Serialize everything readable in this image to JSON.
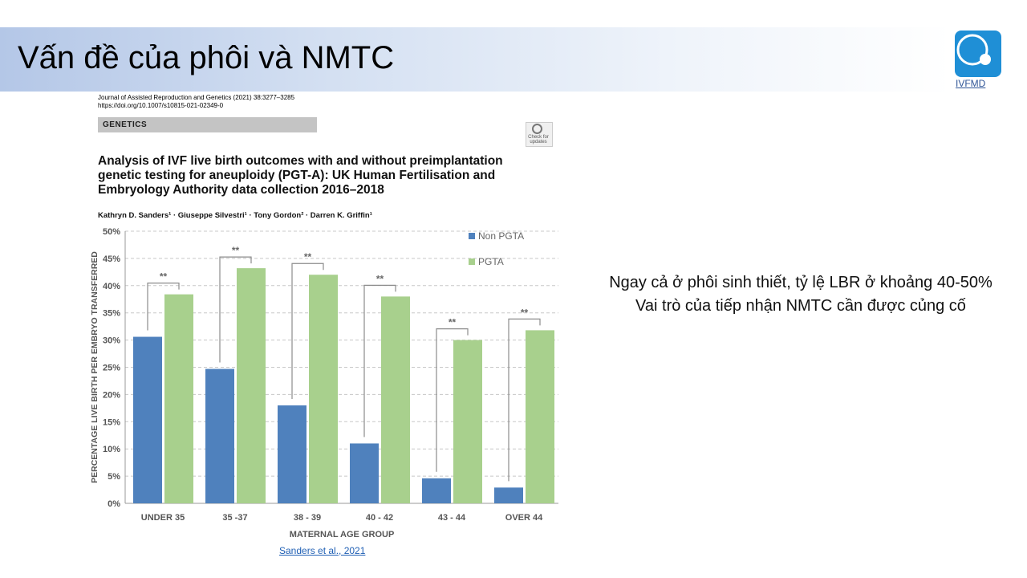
{
  "slide": {
    "title": "Vấn đề của phôi và NMTC",
    "logo_text": "IVFMD",
    "right_text": [
      "Ngay cả ở phôi sinh thiết, tỷ lệ LBR ở khoảng 40-50%",
      "Vai trò của tiếp nhận NMTC cần được củng cố"
    ],
    "citation": "Sanders et al., 2021"
  },
  "paper": {
    "journal": "Journal of Assisted Reproduction and Genetics (2021) 38:3277–3285",
    "doi": "https://doi.org/10.1007/s10815-021-02349-0",
    "section": "GENETICS",
    "check_label": "Check for updates",
    "title": "Analysis of IVF live birth outcomes with and without preimplantation genetic testing for aneuploidy (PGT-A): UK Human Fertilisation and Embryology Authority data collection 2016–2018",
    "authors": "Kathryn D. Sanders¹ · Giuseppe Silvestri¹ · Tony Gordon² · Darren K. Griffin¹"
  },
  "chart_data": {
    "type": "bar",
    "categories": [
      "UNDER 35",
      "35 -37",
      "38 - 39",
      "40 - 42",
      "43 - 44",
      "OVER 44"
    ],
    "series": [
      {
        "name": "Non PGTA",
        "color": "#4f81bd",
        "values": [
          30.6,
          24.7,
          18.0,
          11.0,
          4.6,
          2.9
        ]
      },
      {
        "name": "PGTA",
        "color": "#a8d08d",
        "values": [
          38.4,
          43.2,
          42.0,
          38.0,
          30.0,
          31.8
        ]
      }
    ],
    "significance_label": "**",
    "xlabel": "MATERNAL AGE GROUP",
    "ylabel": "PERCENTAGE LIVE BIRTH PER EMBRYO TRANSFERRED",
    "ylim": [
      0,
      50
    ],
    "yticks": [
      "0%",
      "5%",
      "10%",
      "15%",
      "20%",
      "25%",
      "30%",
      "35%",
      "40%",
      "45%",
      "50%"
    ],
    "grid": true,
    "legend_position": "top-right"
  }
}
